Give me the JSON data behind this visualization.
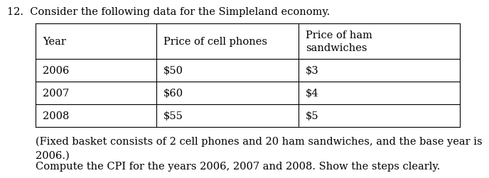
{
  "question_number": "12.",
  "question_text": "Consider the following data for the Simpleland economy.",
  "col_headers": [
    "Year",
    "Price of cell phones",
    "Price of ham\nsandwiches"
  ],
  "rows": [
    [
      "2006",
      "$50",
      "$3"
    ],
    [
      "2007",
      "$60",
      "$4"
    ],
    [
      "2008",
      "$55",
      "$5"
    ]
  ],
  "footnote_line1": "(Fixed basket consists of 2 cell phones and 20 ham sandwiches, and the base year is",
  "footnote_line2": "2006.)",
  "footnote_line3": "Compute the CPI for the years 2006, 2007 and 2008. Show the steps clearly.",
  "bg_color": "#ffffff",
  "text_color": "#000000",
  "font_size": 10.5,
  "title_font_size": 10.5
}
